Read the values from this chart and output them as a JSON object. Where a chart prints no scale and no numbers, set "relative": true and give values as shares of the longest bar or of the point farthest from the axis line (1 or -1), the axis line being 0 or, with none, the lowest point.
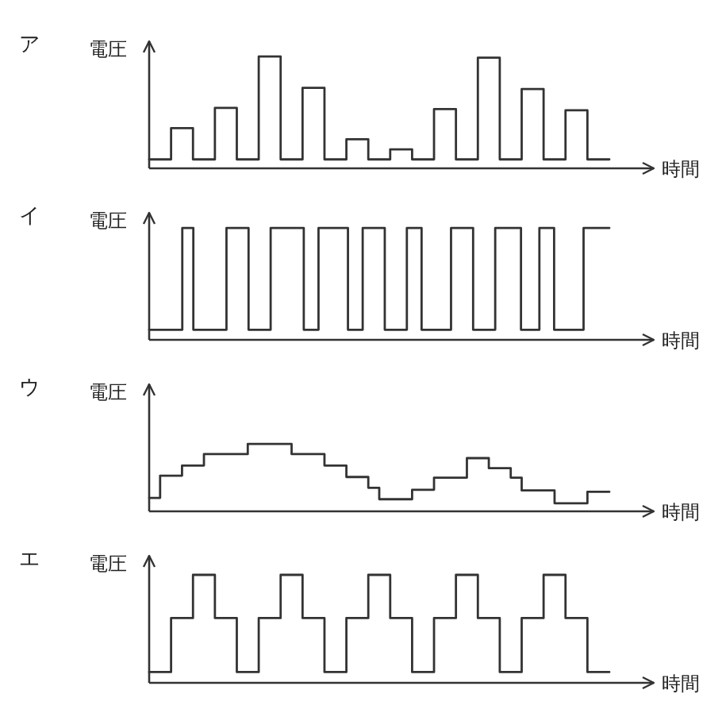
{
  "chart_data": [
    {
      "type": "step",
      "title": "ア",
      "xlabel": "時間",
      "ylabel": "電圧",
      "relative": true,
      "color": "#333333",
      "categories": [
        null,
        null,
        null,
        null,
        null,
        null,
        null,
        null,
        null,
        null,
        null,
        null,
        null,
        null,
        null,
        null,
        null,
        null,
        null,
        null,
        null,
        null
      ],
      "values": [
        0.08,
        0.36,
        0.08,
        0.54,
        0.08,
        1,
        0.08,
        0.72,
        0.08,
        0.26,
        0.08,
        0.17,
        0.08,
        0.53,
        0.08,
        0.99,
        0.08,
        0.71,
        0.08,
        0.52,
        0.08,
        0.08
      ]
    },
    {
      "type": "step",
      "title": "イ",
      "xlabel": "時間",
      "ylabel": "電圧",
      "relative": true,
      "color": "#333333",
      "categories": [
        null,
        null,
        null,
        null,
        null,
        null,
        null,
        null,
        null,
        null,
        null,
        null,
        null,
        null,
        null,
        null,
        null,
        null,
        null,
        null,
        null,
        null,
        null,
        null,
        null,
        null,
        null,
        null,
        null,
        null,
        null,
        null,
        null,
        null,
        null,
        null,
        null,
        null,
        null,
        null,
        null,
        null,
        null,
        null,
        null,
        null,
        null,
        null,
        null,
        null,
        null,
        null,
        null,
        null,
        null,
        null,
        null,
        null,
        null,
        null,
        null,
        null,
        null,
        null,
        null,
        null,
        null,
        null,
        null,
        null,
        null,
        null,
        null,
        null,
        null,
        null,
        null,
        null,
        null,
        null,
        null,
        null,
        null,
        null,
        null,
        null,
        null,
        null,
        null,
        null,
        null,
        null,
        null,
        null,
        null,
        null,
        null,
        null,
        null,
        null,
        null,
        null,
        null,
        null,
        null,
        null,
        null,
        null,
        null,
        null,
        null,
        null,
        null,
        null,
        null,
        null,
        null,
        null,
        null,
        null,
        null,
        null,
        null,
        null,
        null,
        null
      ],
      "values": [
        0.09,
        0.09,
        0.09,
        0.09,
        0.09,
        0.09,
        0.09,
        0.09,
        0.09,
        1,
        1,
        1,
        0.09,
        0.09,
        0.09,
        0.09,
        0.09,
        0.09,
        0.09,
        0.09,
        0.09,
        1,
        1,
        1,
        1,
        1,
        1,
        0.09,
        0.09,
        0.09,
        0.09,
        0.09,
        0.09,
        1,
        1,
        1,
        1,
        1,
        1,
        1,
        1,
        1,
        0.09,
        0.09,
        0.09,
        0.09,
        1,
        1,
        1,
        1,
        1,
        1,
        1,
        1,
        0.09,
        0.09,
        0.09,
        0.09,
        1,
        1,
        1,
        1,
        1,
        1,
        0.09,
        0.09,
        0.09,
        0.09,
        0.09,
        0.09,
        1,
        1,
        1,
        1,
        0.09,
        0.09,
        0.09,
        0.09,
        0.09,
        0.09,
        0.09,
        0.09,
        1,
        1,
        1,
        1,
        1,
        1,
        0.09,
        0.09,
        0.09,
        0.09,
        0.09,
        0.09,
        1,
        1,
        1,
        1,
        1,
        1,
        1,
        0.09,
        0.09,
        0.09,
        0.09,
        0.09,
        1,
        1,
        1,
        1,
        0.09,
        0.09,
        0.09,
        0.09,
        0.09,
        0.09,
        0.09,
        0.09,
        1,
        1,
        1,
        1,
        1,
        1,
        1,
        1
      ]
    },
    {
      "type": "step",
      "title": "ウ",
      "xlabel": "時間",
      "ylabel": "電圧",
      "relative": true,
      "color": "#333333",
      "categories": [
        null,
        null,
        null,
        null,
        null,
        null,
        null,
        null,
        null,
        null,
        null,
        null,
        null,
        null,
        null,
        null,
        null,
        null,
        null,
        null,
        null,
        null,
        null,
        null,
        null,
        null,
        null,
        null,
        null,
        null,
        null,
        null,
        null,
        null,
        null,
        null,
        null,
        null,
        null,
        null,
        null,
        null,
        null
      ],
      "values": [
        0.2,
        0.53,
        0.53,
        0.68,
        0.68,
        0.85,
        0.85,
        0.85,
        0.85,
        1,
        1,
        1,
        1,
        0.85,
        0.85,
        0.85,
        0.68,
        0.68,
        0.51,
        0.51,
        0.35,
        0.18,
        0.18,
        0.18,
        0.32,
        0.32,
        0.5,
        0.5,
        0.5,
        0.79,
        0.79,
        0.64,
        0.64,
        0.5,
        0.31,
        0.31,
        0.31,
        0.12,
        0.12,
        0.12,
        0.29,
        0.29,
        0.29
      ]
    },
    {
      "type": "step",
      "title": "エ",
      "xlabel": "時間",
      "ylabel": "電圧",
      "relative": true,
      "color": "#333333",
      "categories": [
        null,
        null,
        null,
        null,
        null,
        null,
        null,
        null,
        null,
        null,
        null,
        null,
        null,
        null,
        null,
        null,
        null,
        null,
        null,
        null,
        null,
        null
      ],
      "values": [
        0.1,
        0.6,
        1,
        0.6,
        0.1,
        0.6,
        1,
        0.6,
        0.1,
        0.6,
        1,
        0.6,
        0.1,
        0.6,
        1,
        0.6,
        0.1,
        0.6,
        1,
        0.6,
        0.1,
        0.1
      ]
    }
  ]
}
